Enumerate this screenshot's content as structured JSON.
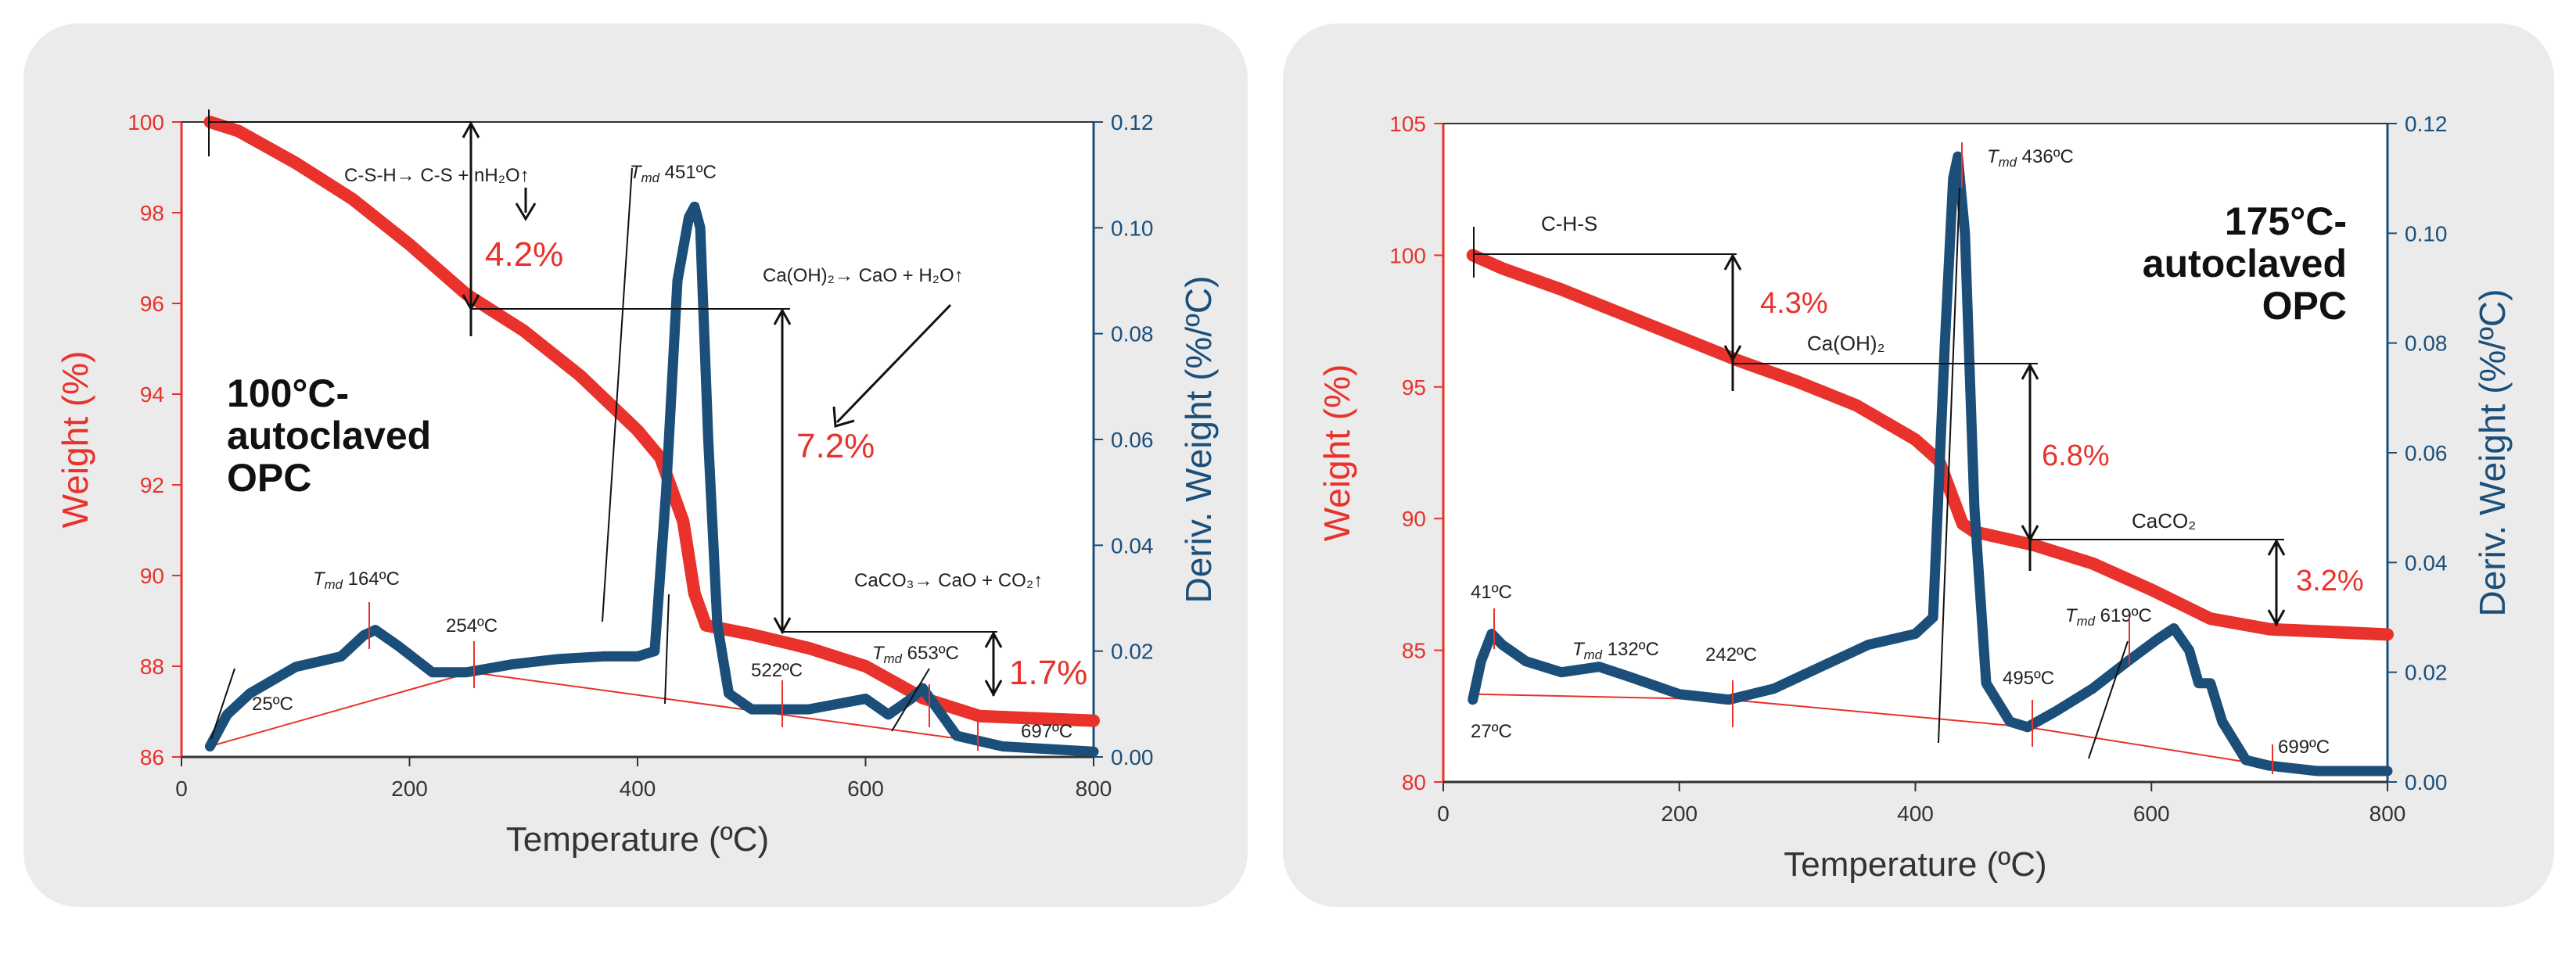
{
  "colors": {
    "weight": "#e8322b",
    "deriv": "#1b4f7a",
    "panel": "#ebebeb",
    "plot_bg": "#ffffff",
    "annot": "#222222",
    "baseline": "#f08080"
  },
  "chart_data": [
    {
      "type": "line",
      "title": "100°C-autoclaved OPC",
      "title_lines": [
        "100°C-",
        "autoclaved",
        "OPC"
      ],
      "xlabel": "Temperature (ºC)",
      "ylabel_left": "Weight (%)",
      "ylabel_right": "Deriv. Weight (%/ºC)",
      "xlim": [
        0,
        800
      ],
      "ylim_left": [
        86,
        100
      ],
      "ylim_right": [
        0,
        0.12
      ],
      "x_ticks": [
        0,
        200,
        400,
        600,
        800
      ],
      "y_ticks_left": [
        86,
        88,
        90,
        92,
        94,
        96,
        98,
        100
      ],
      "y_ticks_right": [
        0.0,
        0.02,
        0.04,
        0.06,
        0.08,
        0.1,
        0.12
      ],
      "series": [
        {
          "name": "Weight (%)",
          "axis": "left",
          "x": [
            25,
            50,
            100,
            150,
            200,
            250,
            300,
            350,
            400,
            420,
            440,
            450,
            460,
            480,
            500,
            550,
            600,
            650,
            700,
            750,
            800
          ],
          "values": [
            100.0,
            99.8,
            99.1,
            98.3,
            97.3,
            96.2,
            95.4,
            94.4,
            93.2,
            92.6,
            91.2,
            89.6,
            88.9,
            88.8,
            88.7,
            88.4,
            88.0,
            87.3,
            86.9,
            86.85,
            86.8
          ]
        },
        {
          "name": "Deriv. Weight (%/ºC)",
          "axis": "right",
          "x": [
            25,
            40,
            60,
            100,
            140,
            160,
            170,
            190,
            220,
            250,
            290,
            330,
            370,
            400,
            415,
            425,
            435,
            445,
            450,
            455,
            462,
            470,
            480,
            500,
            550,
            600,
            620,
            640,
            650,
            660,
            680,
            720,
            760,
            800
          ],
          "values": [
            0.002,
            0.008,
            0.012,
            0.017,
            0.019,
            0.023,
            0.024,
            0.021,
            0.016,
            0.016,
            0.0175,
            0.0185,
            0.019,
            0.019,
            0.02,
            0.05,
            0.09,
            0.102,
            0.104,
            0.1,
            0.06,
            0.025,
            0.012,
            0.009,
            0.009,
            0.011,
            0.008,
            0.011,
            0.013,
            0.01,
            0.004,
            0.002,
            0.0015,
            0.001
          ]
        }
      ],
      "baseline": {
        "x": [
          25,
          254,
          697
        ],
        "values": [
          0.002,
          0.016,
          0.003
        ]
      },
      "annotations": {
        "reaction_csh": "C-S-H→ C-S + nH₂O↑",
        "loss_1": "4.2%",
        "tmd_1_prefix": "T",
        "tmd_1_sub": "md",
        "tmd_1_value": " 451ºC",
        "reaction_ch": "Ca(OH)₂→ CaO + H₂O↑",
        "loss_2": "7.2%",
        "reaction_cc": "CaCO₃→ CaO + CO₂↑",
        "loss_3": "1.7%",
        "tmd_2_value": " 164ºC",
        "tmd_3_value": " 653ºC",
        "t_25": "25ºC",
        "t_254": "254ºC",
        "t_522": "522ºC",
        "t_697": "697ºC"
      }
    },
    {
      "type": "line",
      "title": "175°C-autoclaved OPC",
      "title_lines": [
        "175°C-",
        "autoclaved",
        "OPC"
      ],
      "xlabel": "Temperature (ºC)",
      "ylabel_left": "Weight (%)",
      "ylabel_right": "Deriv. Weight (%/ºC)",
      "xlim": [
        0,
        800
      ],
      "ylim_left": [
        80,
        105
      ],
      "ylim_right": [
        0,
        0.12
      ],
      "x_ticks": [
        0,
        200,
        400,
        600,
        800
      ],
      "y_ticks_left": [
        80,
        85,
        90,
        95,
        100,
        105
      ],
      "y_ticks_right": [
        0.0,
        0.02,
        0.04,
        0.06,
        0.08,
        0.1,
        0.12
      ],
      "series": [
        {
          "name": "Weight (%)",
          "axis": "left",
          "x": [
            25,
            50,
            100,
            150,
            200,
            250,
            300,
            350,
            400,
            420,
            430,
            440,
            450,
            470,
            500,
            550,
            600,
            650,
            700,
            750,
            800
          ],
          "values": [
            100.0,
            99.5,
            98.7,
            97.8,
            96.9,
            96.0,
            95.2,
            94.3,
            93.0,
            92.2,
            91.0,
            89.8,
            89.5,
            89.3,
            89.0,
            88.3,
            87.3,
            86.2,
            85.8,
            85.7,
            85.6
          ]
        },
        {
          "name": "Deriv. Weight (%/ºC)",
          "axis": "right",
          "x": [
            25,
            32,
            41,
            50,
            70,
            100,
            132,
            160,
            200,
            242,
            280,
            320,
            360,
            400,
            415,
            425,
            432,
            436,
            442,
            450,
            460,
            480,
            495,
            520,
            550,
            580,
            605,
            619,
            632,
            640,
            650,
            660,
            680,
            699,
            740,
            800
          ],
          "values": [
            0.015,
            0.022,
            0.027,
            0.025,
            0.022,
            0.02,
            0.021,
            0.019,
            0.016,
            0.015,
            0.017,
            0.021,
            0.025,
            0.027,
            0.03,
            0.08,
            0.11,
            0.114,
            0.1,
            0.05,
            0.018,
            0.011,
            0.01,
            0.013,
            0.017,
            0.022,
            0.026,
            0.028,
            0.024,
            0.018,
            0.018,
            0.011,
            0.004,
            0.003,
            0.002,
            0.002
          ]
        }
      ],
      "baseline": {
        "x": [
          27,
          242,
          495,
          699
        ],
        "values": [
          0.016,
          0.015,
          0.01,
          0.003
        ]
      },
      "annotations": {
        "reaction_chs": "C-H-S",
        "loss_1": "4.3%",
        "tmd_1_prefix": "T",
        "tmd_1_sub": "md",
        "tmd_1_value": " 436ºC",
        "reaction_ch": "Ca(OH)₂",
        "loss_2": "6.8%",
        "reaction_cc": "CaCO₂",
        "loss_3": "3.2%",
        "tmd_2_value": " 132ºC",
        "tmd_3_value": " 619ºC",
        "t_41": "41ºC",
        "t_27": "27ºC",
        "t_242": "242ºC",
        "t_495": "495ºC",
        "t_699": "699ºC"
      }
    }
  ]
}
